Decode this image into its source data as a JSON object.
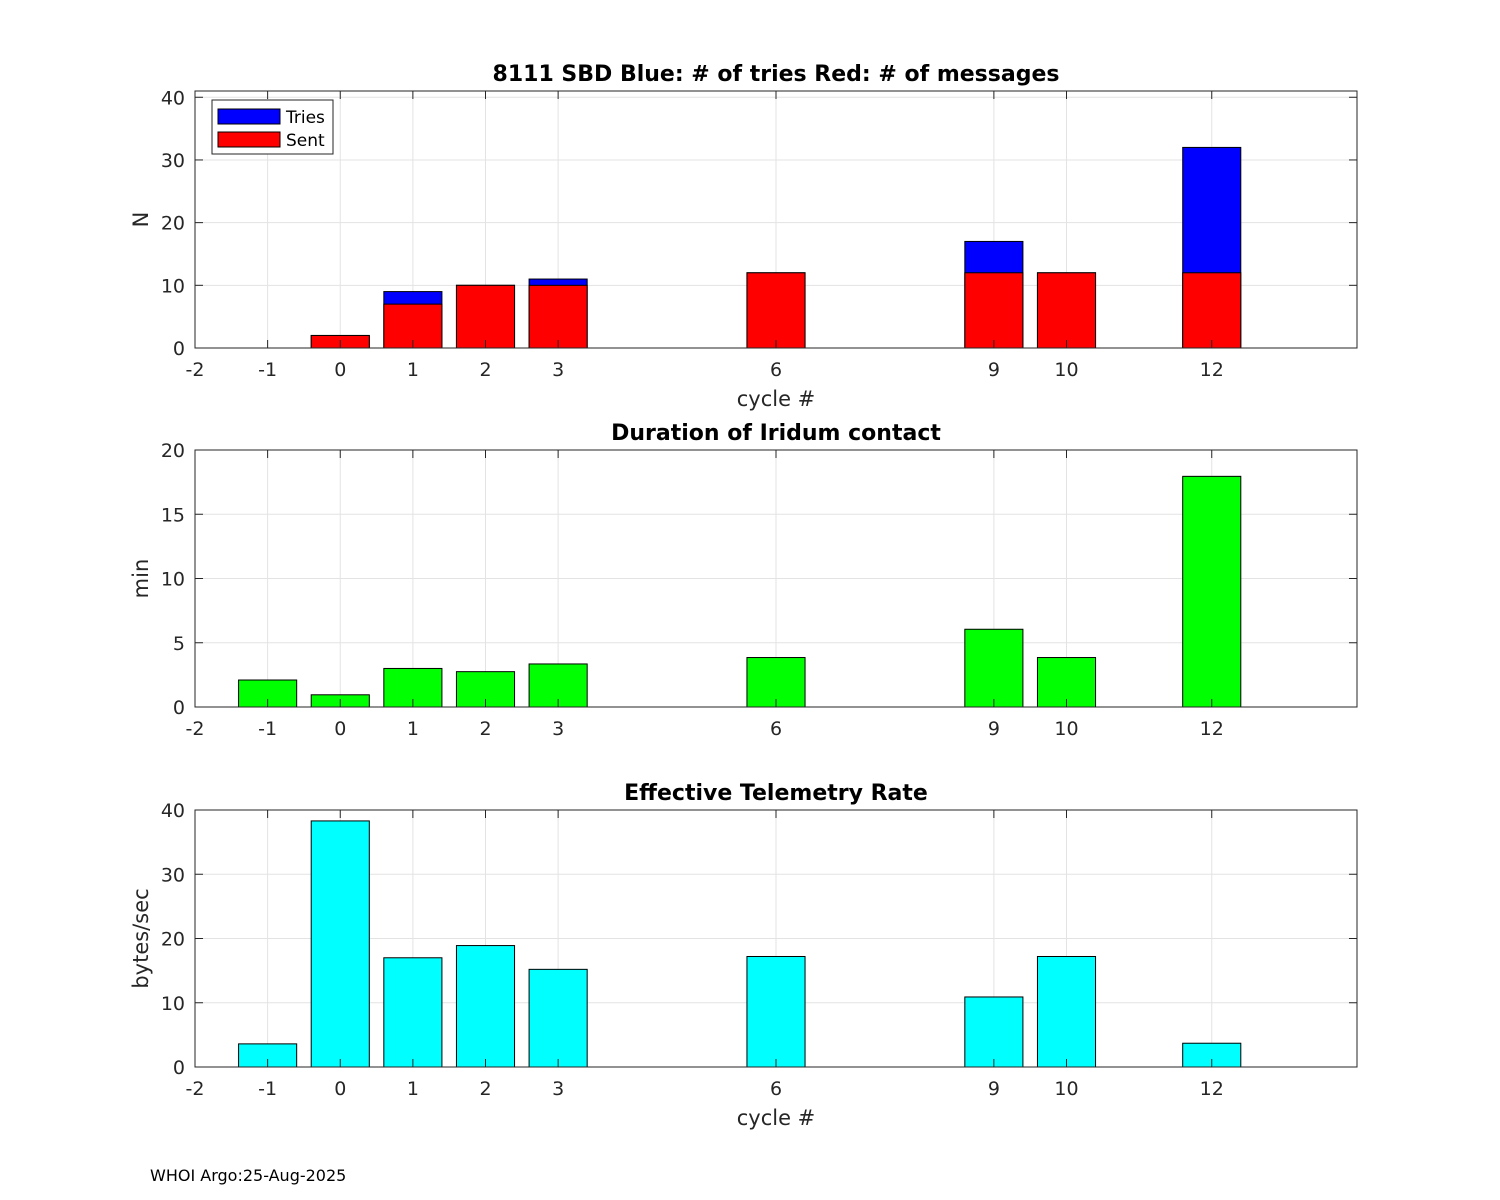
{
  "footer": "WHOI Argo:25-Aug-2025",
  "chart_data": [
    {
      "type": "bar",
      "stacked": false,
      "title": "8111 SBD  Blue: # of tries   Red: # of messages",
      "xlabel": "cycle #",
      "ylabel": "N",
      "xlim": [
        -2,
        14
      ],
      "ylim": [
        0,
        41
      ],
      "xticks": [
        -2,
        -1,
        0,
        1,
        2,
        3,
        6,
        9,
        10,
        12
      ],
      "yticks": [
        0,
        10,
        20,
        30,
        40
      ],
      "grid": true,
      "legend": {
        "placement": "top-left",
        "entries": [
          "Tries",
          "Sent"
        ]
      },
      "x": [
        0,
        1,
        2,
        3,
        6,
        9,
        10,
        12
      ],
      "series": [
        {
          "name": "Tries",
          "color": "#0000ff",
          "values": [
            2,
            9,
            10,
            11,
            12,
            17,
            12,
            32
          ]
        },
        {
          "name": "Sent",
          "color": "#ff0000",
          "values": [
            2,
            7,
            10,
            10,
            12,
            12,
            12,
            12
          ]
        }
      ]
    },
    {
      "type": "bar",
      "title": "Duration of Iridum contact",
      "xlabel": "",
      "ylabel": "min",
      "xlim": [
        -2,
        14
      ],
      "ylim": [
        0,
        20
      ],
      "xticks": [
        -2,
        -1,
        0,
        1,
        2,
        3,
        6,
        9,
        10,
        12
      ],
      "yticks": [
        0,
        5,
        10,
        15,
        20
      ],
      "grid": true,
      "x": [
        -1,
        0,
        1,
        2,
        3,
        6,
        9,
        10,
        12
      ],
      "series": [
        {
          "color": "#00ff00",
          "values": [
            2.1,
            0.95,
            3.0,
            2.75,
            3.35,
            3.85,
            6.05,
            3.85,
            17.95
          ]
        }
      ]
    },
    {
      "type": "bar",
      "title": "Effective Telemetry Rate",
      "xlabel": "cycle #",
      "ylabel": "bytes/sec",
      "xlim": [
        -2,
        14
      ],
      "ylim": [
        0,
        40
      ],
      "xticks": [
        -2,
        -1,
        0,
        1,
        2,
        3,
        6,
        9,
        10,
        12
      ],
      "yticks": [
        0,
        10,
        20,
        30,
        40
      ],
      "grid": true,
      "x": [
        -1,
        0,
        1,
        2,
        3,
        6,
        9,
        10,
        12
      ],
      "series": [
        {
          "color": "#00ffff",
          "values": [
            3.6,
            38.3,
            17.0,
            18.9,
            15.2,
            17.2,
            10.9,
            17.2,
            3.7
          ]
        }
      ]
    }
  ]
}
